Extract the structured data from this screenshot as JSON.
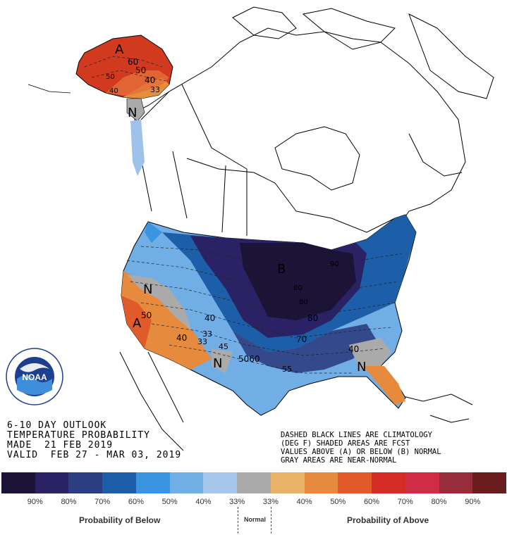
{
  "outlook": {
    "line1": "6-10 DAY OUTLOOK",
    "line2": "TEMPERATURE PROBABILITY",
    "line3": "MADE  21 FEB 2019",
    "line4": "VALID  FEB 27 - MAR 03, 2019"
  },
  "notes": {
    "line1": "DASHED BLACK LINES ARE CLIMATOLOGY",
    "line2": "(DEG F) SHADED AREAS ARE FCST",
    "line3": "VALUES ABOVE (A) OR BELOW (B) NORMAL",
    "line4": "GRAY AREAS ARE NEAR-NORMAL"
  },
  "map_labels": {
    "alaska_a": "A",
    "alaska_60": "60",
    "alaska_50": "50",
    "alaska_40": "40",
    "alaska_33": "33",
    "alaska_n": "N",
    "alaska_50b": "50",
    "alaska_40b": "40",
    "west_n": "N",
    "west_a": "A",
    "west_50": "50",
    "west_40": "40",
    "west_33a": "33",
    "west_33b": "33",
    "sw_n": "N",
    "center_b": "B",
    "c40": "40",
    "c45": "45",
    "c5060": "5060",
    "c55": "55",
    "c70": "70",
    "c80": "80",
    "c80b": "80",
    "c80c": "80",
    "c90": "90",
    "se_40": "40",
    "se_n": "N"
  },
  "legend": {
    "colors": [
      "#1b1436",
      "#2a2265",
      "#2d3d82",
      "#1c5fa8",
      "#3a95e0",
      "#71aee6",
      "#a6c6ec",
      "#aaaaaa",
      "#e8b267",
      "#e68a3d",
      "#e05a2a",
      "#d42b26",
      "#cf2c45",
      "#962d38",
      "#6b1d1d"
    ],
    "ticks": [
      "90%",
      "80%",
      "70%",
      "60%",
      "50%",
      "40%",
      "33%",
      "33%",
      "40%",
      "50%",
      "60%",
      "70%",
      "80%",
      "90%"
    ],
    "below_label": "Probability of Below",
    "normal_label": "Normal",
    "above_label": "Probability of Above"
  },
  "logo": {
    "text": "NOAA",
    "ring_text": "NATIONAL OCEANIC AND ATMOSPHERIC ADMINISTRATION U.S. DEPARTMENT OF COMMERCE"
  }
}
